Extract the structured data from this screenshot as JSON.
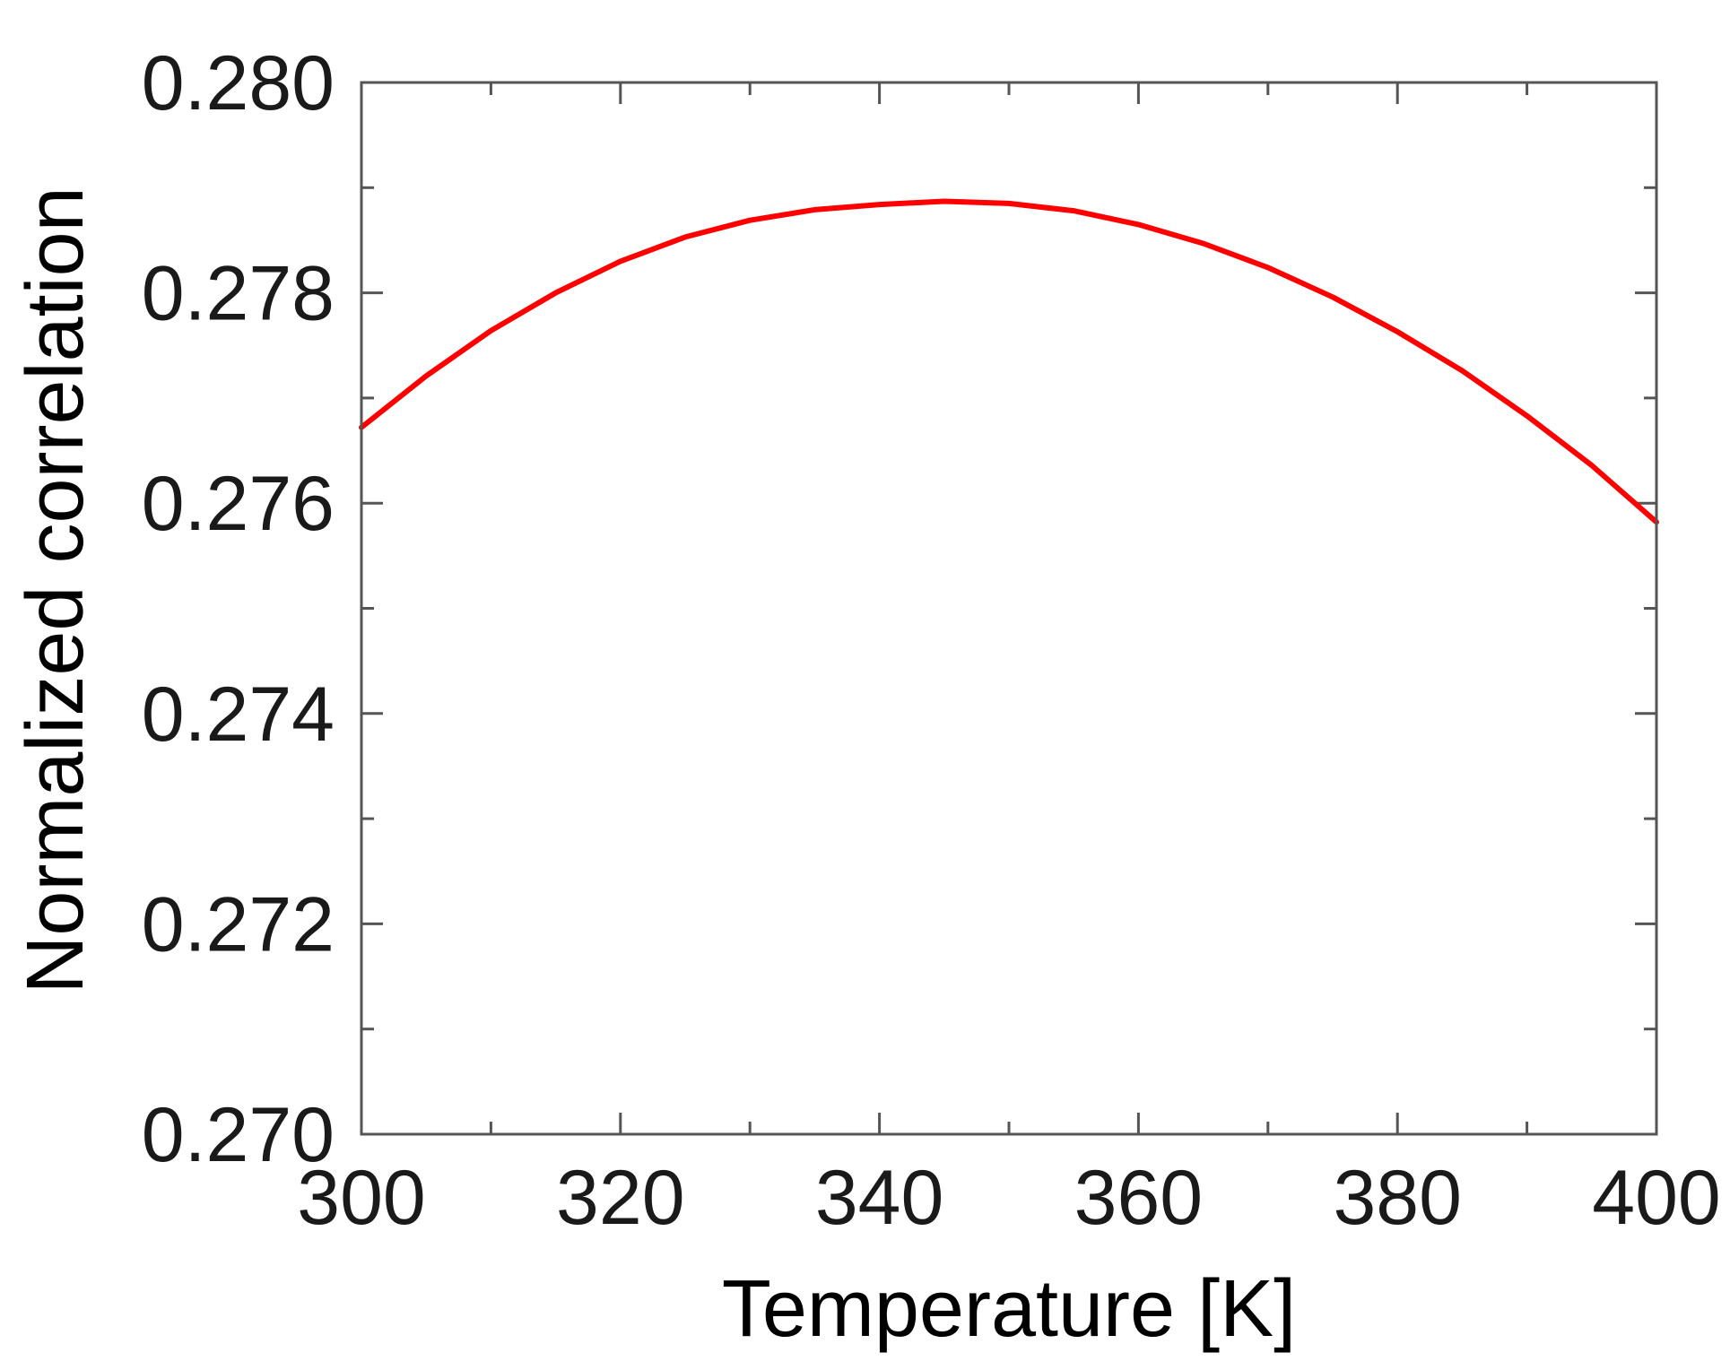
{
  "chart_data": {
    "type": "line",
    "title": "",
    "xlabel": "Temperature [K]",
    "ylabel": "Normalized correlation",
    "xlim": [
      300,
      400
    ],
    "ylim": [
      0.27,
      0.28
    ],
    "xticks": [
      300,
      320,
      340,
      360,
      380,
      400
    ],
    "xtick_labels": [
      "300",
      "320",
      "340",
      "360",
      "380",
      "400"
    ],
    "xminor": [
      310,
      330,
      350,
      370,
      390
    ],
    "yticks": [
      0.27,
      0.272,
      0.274,
      0.276,
      0.278,
      0.28
    ],
    "ytick_labels": [
      "0.270",
      "0.272",
      "0.274",
      "0.276",
      "0.278",
      "0.280"
    ],
    "yminor": [
      0.271,
      0.273,
      0.275,
      0.277,
      0.279
    ],
    "grid": false,
    "legend": "none",
    "series": [
      {
        "color": "#ff0000",
        "x": [
          300,
          305,
          310,
          315,
          320,
          325,
          330,
          335,
          340,
          345,
          350,
          355,
          360,
          365,
          370,
          375,
          380,
          385,
          390,
          395,
          400
        ],
        "y": [
          0.27672,
          0.27721,
          0.27764,
          0.278,
          0.2783,
          0.27853,
          0.27869,
          0.27879,
          0.27884,
          0.27887,
          0.27885,
          0.27878,
          0.27865,
          0.27847,
          0.27824,
          0.27796,
          0.27763,
          0.27726,
          0.27683,
          0.27636,
          0.27582
        ]
      }
    ]
  }
}
